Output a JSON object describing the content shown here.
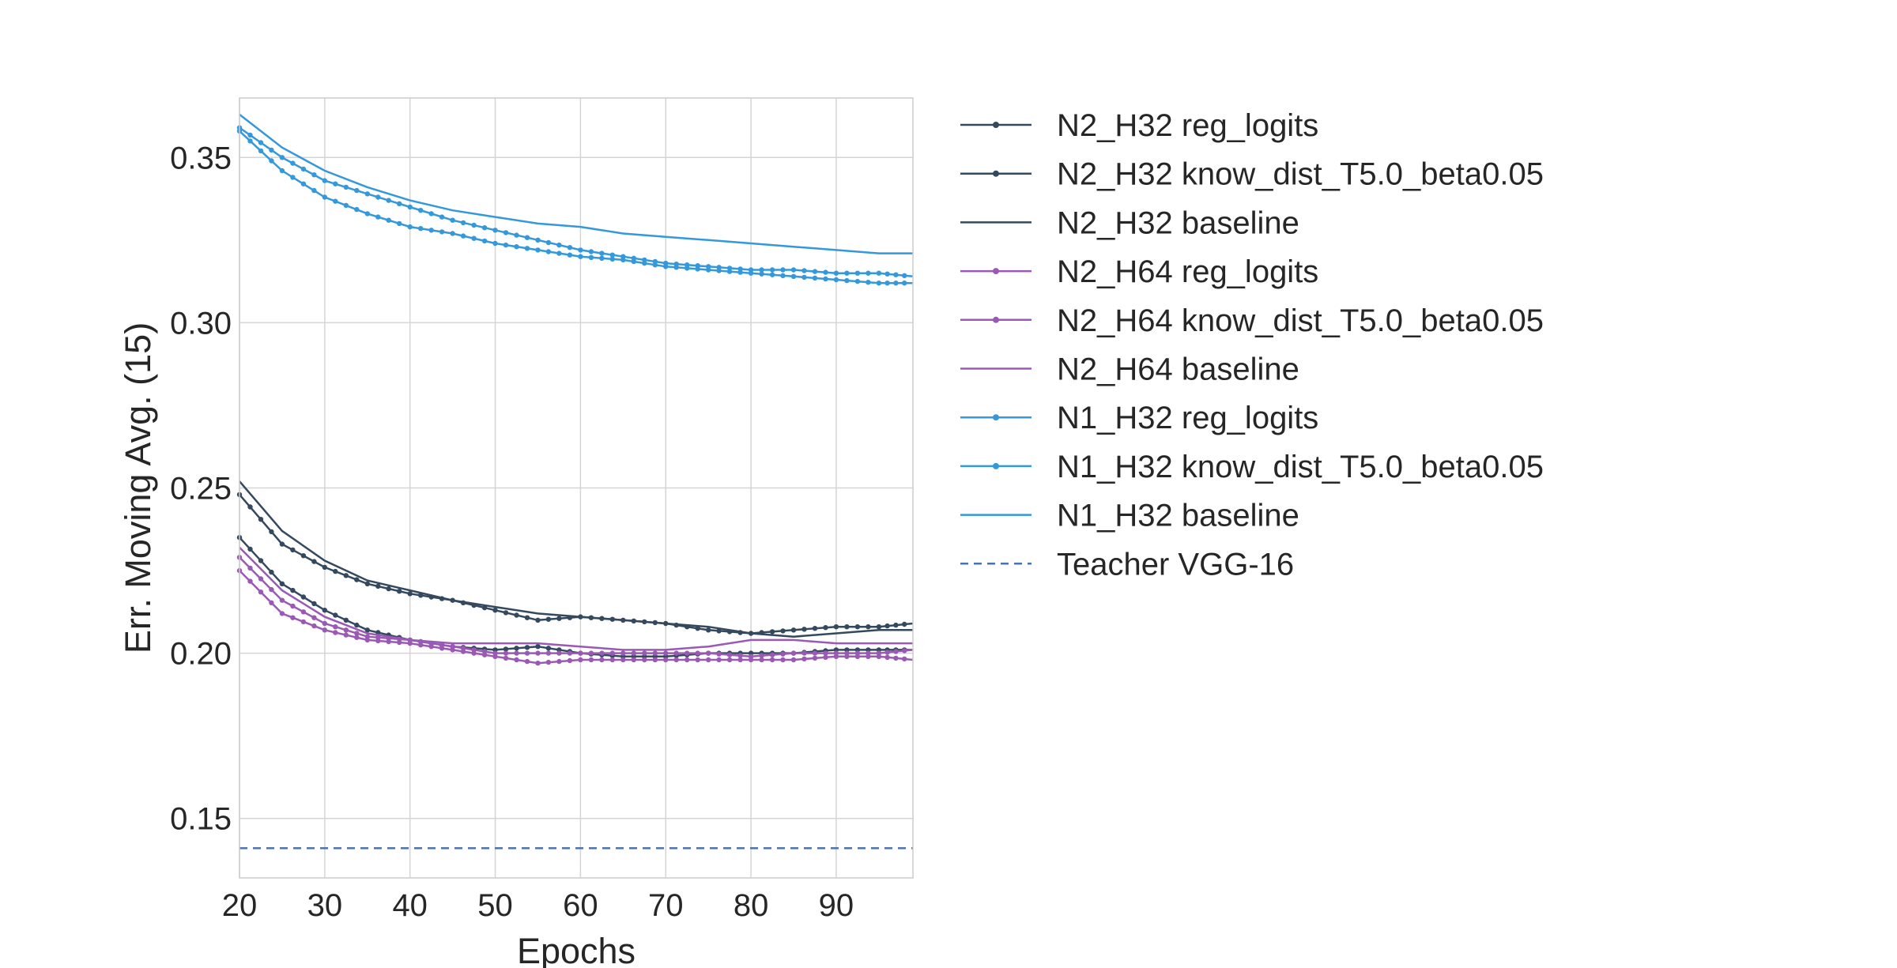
{
  "chart_data": {
    "type": "line",
    "xlabel": "Epochs",
    "ylabel": "Err. Moving Avg. (15)",
    "xlim": [
      20,
      99
    ],
    "ylim": [
      0.132,
      0.368
    ],
    "xticks": [
      20,
      30,
      40,
      50,
      60,
      70,
      80,
      90
    ],
    "yticks": [
      0.15,
      0.2,
      0.25,
      0.3,
      0.35
    ],
    "xtick_labels": [
      "20",
      "30",
      "40",
      "50",
      "60",
      "70",
      "80",
      "90"
    ],
    "ytick_labels": [
      "0.15",
      "0.20",
      "0.25",
      "0.30",
      "0.35"
    ],
    "grid": true,
    "legend_position": "right, outside plot",
    "x": [
      20,
      25,
      30,
      35,
      40,
      45,
      50,
      55,
      60,
      65,
      70,
      75,
      80,
      85,
      90,
      95,
      99
    ],
    "series": [
      {
        "name": "N2_H32 reg_logits",
        "color": "#34495e",
        "style": "markers",
        "values": [
          0.248,
          0.233,
          0.226,
          0.221,
          0.218,
          0.216,
          0.213,
          0.21,
          0.211,
          0.21,
          0.209,
          0.207,
          0.206,
          0.207,
          0.208,
          0.208,
          0.209
        ]
      },
      {
        "name": "N2_H32 know_dist_T5.0_beta0.05",
        "color": "#34495e",
        "style": "markers",
        "values": [
          0.235,
          0.221,
          0.213,
          0.207,
          0.204,
          0.202,
          0.201,
          0.202,
          0.2,
          0.199,
          0.199,
          0.2,
          0.2,
          0.2,
          0.201,
          0.201,
          0.201
        ]
      },
      {
        "name": "N2_H32 baseline",
        "color": "#34495e",
        "style": "solid",
        "values": [
          0.252,
          0.237,
          0.228,
          0.222,
          0.219,
          0.216,
          0.214,
          0.212,
          0.211,
          0.21,
          0.209,
          0.208,
          0.206,
          0.205,
          0.206,
          0.207,
          0.207
        ]
      },
      {
        "name": "N2_H64 reg_logits",
        "color": "#9b59b6",
        "style": "markers",
        "values": [
          0.229,
          0.216,
          0.209,
          0.205,
          0.204,
          0.202,
          0.2,
          0.2,
          0.2,
          0.2,
          0.2,
          0.2,
          0.199,
          0.2,
          0.2,
          0.2,
          0.201
        ]
      },
      {
        "name": "N2_H64 know_dist_T5.0_beta0.05",
        "color": "#9b59b6",
        "style": "markers",
        "values": [
          0.225,
          0.212,
          0.207,
          0.204,
          0.203,
          0.201,
          0.199,
          0.197,
          0.198,
          0.198,
          0.198,
          0.198,
          0.198,
          0.198,
          0.199,
          0.199,
          0.198
        ]
      },
      {
        "name": "N2_H64 baseline",
        "color": "#9b59b6",
        "style": "solid",
        "values": [
          0.232,
          0.219,
          0.211,
          0.206,
          0.204,
          0.203,
          0.203,
          0.203,
          0.202,
          0.201,
          0.201,
          0.202,
          0.204,
          0.204,
          0.203,
          0.203,
          0.203
        ]
      },
      {
        "name": "N1_H32 reg_logits",
        "color": "#3498db",
        "style": "markers",
        "values": [
          0.359,
          0.35,
          0.343,
          0.339,
          0.335,
          0.331,
          0.328,
          0.325,
          0.322,
          0.32,
          0.318,
          0.317,
          0.316,
          0.316,
          0.315,
          0.315,
          0.314
        ]
      },
      {
        "name": "N1_H32 know_dist_T5.0_beta0.05",
        "color": "#3498db",
        "style": "markers",
        "values": [
          0.358,
          0.346,
          0.338,
          0.333,
          0.329,
          0.327,
          0.324,
          0.322,
          0.32,
          0.319,
          0.317,
          0.316,
          0.315,
          0.314,
          0.313,
          0.312,
          0.312
        ]
      },
      {
        "name": "N1_H32 baseline",
        "color": "#3498db",
        "style": "solid",
        "values": [
          0.363,
          0.353,
          0.346,
          0.341,
          0.337,
          0.334,
          0.332,
          0.33,
          0.329,
          0.327,
          0.326,
          0.325,
          0.324,
          0.323,
          0.322,
          0.321,
          0.321
        ]
      },
      {
        "name": "Teacher VGG-16",
        "color": "#4c72b0",
        "style": "dashed",
        "values": [
          0.141,
          0.141,
          0.141,
          0.141,
          0.141,
          0.141,
          0.141,
          0.141,
          0.141,
          0.141,
          0.141,
          0.141,
          0.141,
          0.141,
          0.141,
          0.141,
          0.141
        ]
      }
    ]
  }
}
